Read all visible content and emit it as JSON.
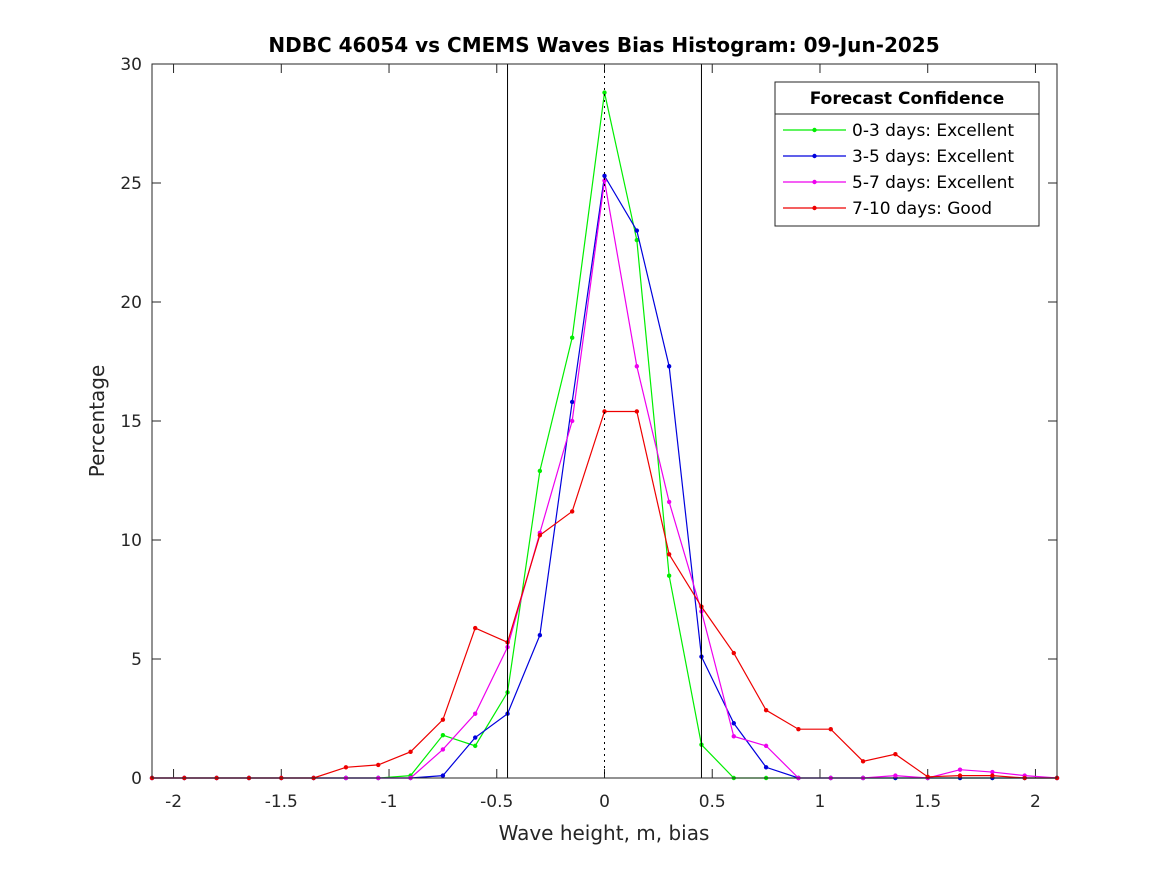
{
  "chart_data": {
    "type": "line",
    "title": "NDBC 46054 vs CMEMS Waves Bias Histogram: 09-Jun-2025",
    "xlabel": "Wave height, m, bias",
    "ylabel": "Percentage",
    "xlim": [
      -2.1,
      2.1
    ],
    "ylim": [
      0,
      30
    ],
    "xticks": [
      -2,
      -1.5,
      -1,
      -0.5,
      0,
      0.5,
      1,
      1.5,
      2
    ],
    "xtick_labels": [
      "-2",
      "-1.5",
      "-1",
      "-0.5",
      "0",
      "0.5",
      "1",
      "1.5",
      "2"
    ],
    "yticks": [
      0,
      5,
      10,
      15,
      20,
      25,
      30
    ],
    "ytick_labels": [
      "0",
      "5",
      "10",
      "15",
      "20",
      "25",
      "30"
    ],
    "vertical_lines": [
      -0.45,
      0.45
    ],
    "zero_line": 0,
    "legend": {
      "title": "Forecast Confidence",
      "position": "top-right"
    },
    "x": [
      -2.1,
      -1.95,
      -1.8,
      -1.65,
      -1.5,
      -1.35,
      -1.2,
      -1.05,
      -0.9,
      -0.75,
      -0.6,
      -0.45,
      -0.3,
      -0.15,
      0,
      0.15,
      0.3,
      0.45,
      0.6,
      0.75,
      0.9,
      1.05,
      1.2,
      1.35,
      1.5,
      1.65,
      1.8,
      1.95,
      2.1
    ],
    "series": [
      {
        "name": "0-3 days: Excellent",
        "color": "#00ee00",
        "values": [
          0,
          0,
          0,
          0,
          0,
          0,
          0,
          0,
          0.1,
          1.8,
          1.35,
          3.6,
          12.9,
          18.5,
          28.8,
          22.6,
          8.5,
          1.4,
          0,
          0,
          0,
          0,
          0,
          0,
          0,
          0,
          0,
          0,
          0
        ]
      },
      {
        "name": "3-5 days: Excellent",
        "color": "#0000dd",
        "values": [
          0,
          0,
          0,
          0,
          0,
          0,
          0,
          0,
          0,
          0.1,
          1.7,
          2.7,
          6.0,
          15.8,
          25.3,
          23.0,
          17.3,
          5.1,
          2.3,
          0.45,
          0,
          0,
          0,
          0,
          0,
          0,
          0,
          0,
          0
        ]
      },
      {
        "name": "5-7 days: Excellent",
        "color": "#ee00ee",
        "values": [
          0,
          0,
          0,
          0,
          0,
          0,
          0,
          0,
          0,
          1.2,
          2.7,
          5.5,
          10.3,
          15.0,
          25.1,
          17.3,
          11.6,
          7.0,
          1.75,
          1.35,
          0,
          0,
          0,
          0.1,
          0,
          0.35,
          0.25,
          0.1,
          0
        ]
      },
      {
        "name": "7-10 days: Good",
        "color": "#ee0000",
        "values": [
          0,
          0,
          0,
          0,
          0,
          0,
          0.45,
          0.55,
          1.1,
          2.45,
          6.3,
          5.7,
          10.2,
          11.2,
          15.4,
          15.4,
          9.4,
          7.2,
          5.25,
          2.85,
          2.05,
          2.05,
          0.7,
          1.0,
          0.05,
          0.1,
          0.1,
          0,
          0
        ]
      }
    ]
  }
}
